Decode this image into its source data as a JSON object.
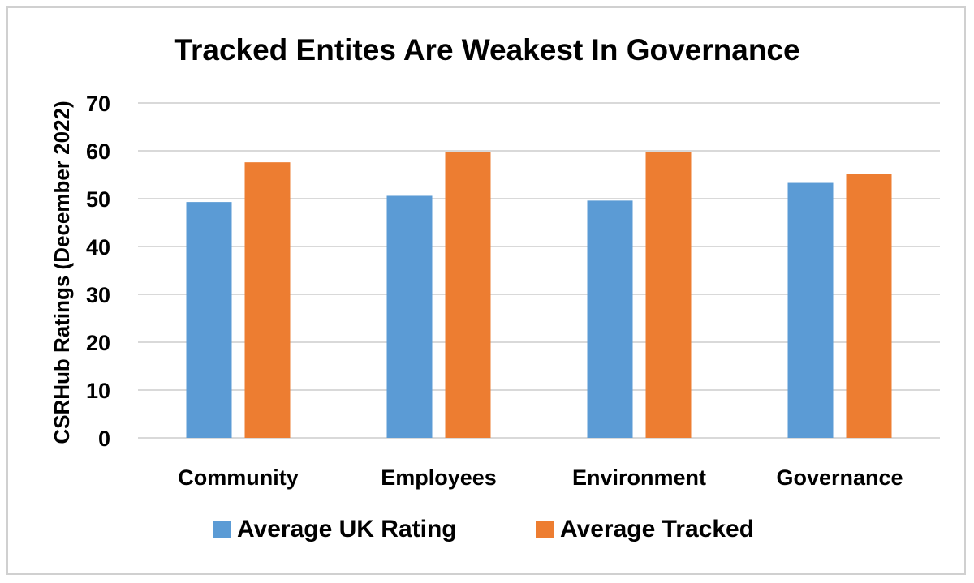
{
  "chart_data": {
    "type": "bar",
    "title": "Tracked Entites Are Weakest In Governance",
    "ylabel": "CSRHub Ratings (December 2022)",
    "xlabel": "",
    "categories": [
      "Community",
      "Employees",
      "Environment",
      "Governance"
    ],
    "series": [
      {
        "name": "Average UK Rating",
        "color": "#5b9bd5",
        "values": [
          49.3,
          50.6,
          49.6,
          53.3
        ]
      },
      {
        "name": "Average Tracked",
        "color": "#ed7d31",
        "values": [
          57.6,
          59.8,
          59.8,
          55.1
        ]
      }
    ],
    "ylim": [
      0,
      70
    ],
    "yticks": [
      "0",
      "10",
      "20",
      "30",
      "40",
      "50",
      "60",
      "70"
    ],
    "grid": true,
    "legend_position": "bottom"
  }
}
